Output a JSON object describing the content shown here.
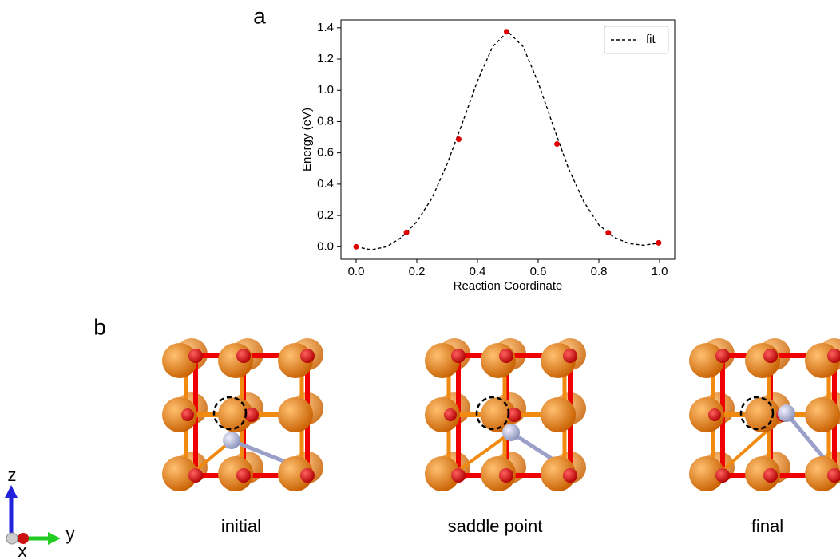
{
  "panel_labels": [
    "a",
    "b"
  ],
  "chart_data": {
    "type": "line",
    "x_label": "Reaction Coordinate",
    "y_label": "Energy (eV)",
    "xlim": [
      -0.05,
      1.05
    ],
    "ylim": [
      -0.08,
      1.45
    ],
    "xticks": [
      {
        "value": 0,
        "label": "0.0"
      },
      {
        "value": 0.2,
        "label": "0.2"
      },
      {
        "value": 0.4,
        "label": "0.4"
      },
      {
        "value": 0.6,
        "label": "0.6"
      },
      {
        "value": 0.8,
        "label": "0.8"
      },
      {
        "value": 1,
        "label": "1.0"
      }
    ],
    "yticks": [
      {
        "value": 0,
        "label": "0.0"
      },
      {
        "value": 0.2,
        "label": "0.2"
      },
      {
        "value": 0.4,
        "label": "0.4"
      },
      {
        "value": 0.6,
        "label": "0.6"
      },
      {
        "value": 0.8,
        "label": "0.8"
      },
      {
        "value": 1,
        "label": "1.0"
      },
      {
        "value": 1.2,
        "label": "1.2"
      },
      {
        "value": 1.4,
        "label": "1.4"
      }
    ],
    "legend": "upper right",
    "series": [
      {
        "name": "fit",
        "color": "#000000",
        "style": "dashed",
        "x": [
          0,
          0.05,
          0.1,
          0.15,
          0.2,
          0.25,
          0.3,
          0.35,
          0.4,
          0.45,
          0.5,
          0.55,
          0.6,
          0.65,
          0.7,
          0.75,
          0.8,
          0.85,
          0.9,
          0.95,
          1.0
        ],
        "values": [
          0.0,
          -0.02,
          0.0,
          0.06,
          0.16,
          0.31,
          0.53,
          0.79,
          1.06,
          1.28,
          1.375,
          1.28,
          1.05,
          0.77,
          0.5,
          0.29,
          0.14,
          0.06,
          0.02,
          0.01,
          0.025
        ]
      },
      {
        "color": "#dd0000",
        "style": "points",
        "x": [
          0,
          0.166,
          0.338,
          0.496,
          0.662,
          0.831,
          0.997
        ],
        "values": [
          0.0,
          0.092,
          0.687,
          1.375,
          0.657,
          0.09,
          0.025
        ]
      }
    ]
  },
  "structures": [
    "initial",
    "saddle point",
    "final"
  ],
  "axes_triad": [
    "z",
    "y",
    "x"
  ]
}
